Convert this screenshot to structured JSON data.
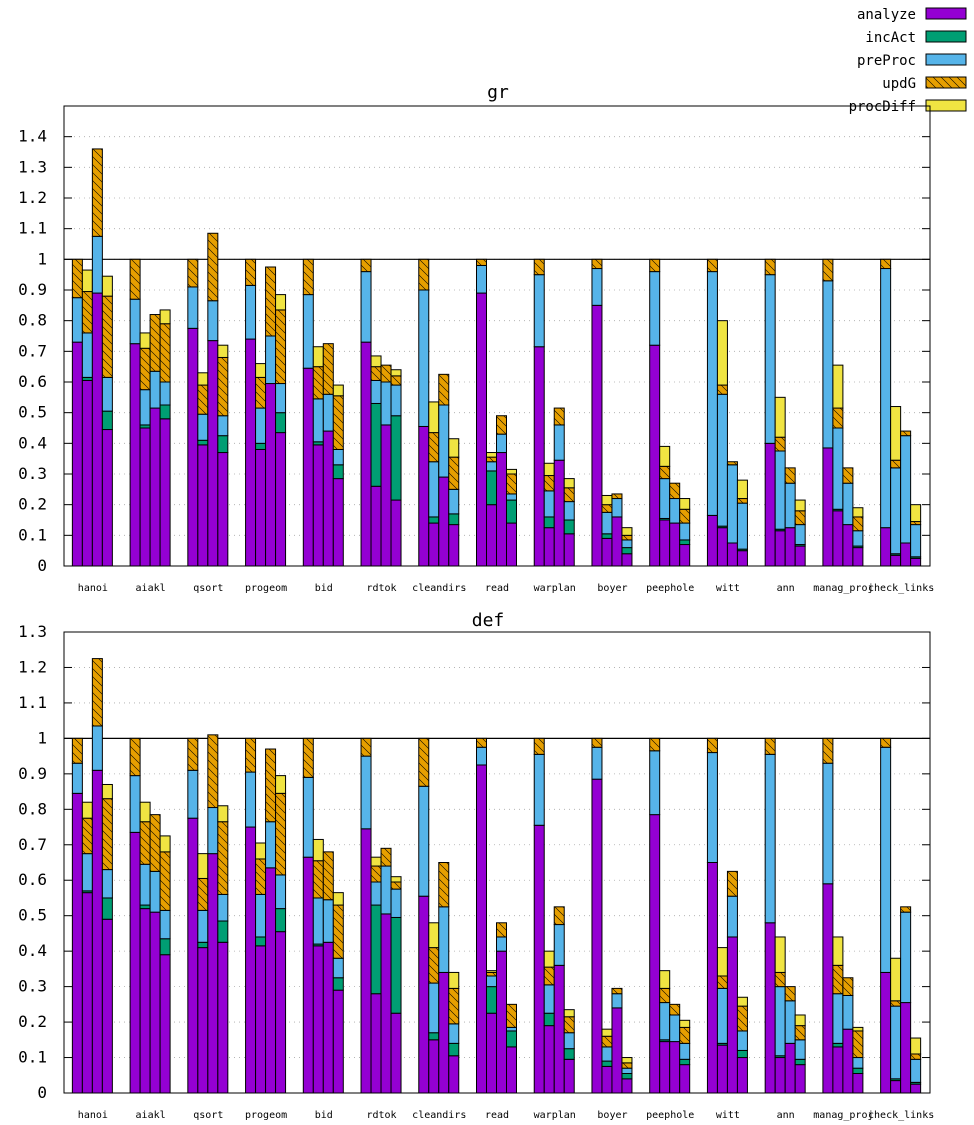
{
  "legend": {
    "placement": "top-right",
    "items": [
      {
        "name": "analyze",
        "color": "#9400d3",
        "pattern": "solid"
      },
      {
        "name": "incAct",
        "color": "#009e73",
        "pattern": "solid"
      },
      {
        "name": "preProc",
        "color": "#56b4e9",
        "pattern": "solid"
      },
      {
        "name": "updG",
        "color": "#e69f00",
        "pattern": "hatched"
      },
      {
        "name": "procDiff",
        "color": "#f0e442",
        "pattern": "solid"
      }
    ]
  },
  "chart_data": [
    {
      "type": "bar",
      "stacked": true,
      "title": "gr",
      "xlabel": "",
      "ylabel": "",
      "ylim": [
        0,
        1.5
      ],
      "yticks": [
        "0",
        "0.1",
        "0.2",
        "0.3",
        "0.4",
        "0.5",
        "0.6",
        "0.7",
        "0.8",
        "0.9",
        "1",
        "1.1",
        "1.2",
        "1.3",
        "1.4"
      ],
      "reference_line": 1,
      "grid": true,
      "categories": [
        "hanoi",
        "aiakl",
        "qsort",
        "progeom",
        "bid",
        "rdtok",
        "cleandirs",
        "read",
        "warplan",
        "boyer",
        "peephole",
        "witt",
        "ann",
        "manag_proj",
        "check_links"
      ],
      "bars_per_category": 4,
      "stack_order": [
        "analyze",
        "incAct",
        "preProc",
        "updG",
        "procDiff"
      ],
      "groups": [
        [
          [
            0.73,
            0,
            0.145,
            0.125,
            0
          ],
          [
            0.605,
            0.01,
            0.145,
            0.135,
            0.07
          ],
          [
            0.89,
            0,
            0.185,
            0.285,
            0
          ],
          [
            0.445,
            0.06,
            0.11,
            0.265,
            0.065
          ]
        ],
        [
          [
            0.725,
            0,
            0.145,
            0.13,
            0
          ],
          [
            0.45,
            0.01,
            0.115,
            0.135,
            0.05
          ],
          [
            0.515,
            0,
            0.12,
            0.185,
            0
          ],
          [
            0.48,
            0.045,
            0.075,
            0.19,
            0.045
          ]
        ],
        [
          [
            0.775,
            0,
            0.135,
            0.09,
            0
          ],
          [
            0.395,
            0.015,
            0.085,
            0.095,
            0.04
          ],
          [
            0.735,
            0,
            0.13,
            0.22,
            0
          ],
          [
            0.37,
            0.055,
            0.065,
            0.19,
            0.04
          ]
        ],
        [
          [
            0.74,
            0,
            0.175,
            0.085,
            0
          ],
          [
            0.38,
            0.02,
            0.115,
            0.1,
            0.045
          ],
          [
            0.595,
            0,
            0.155,
            0.225,
            0
          ],
          [
            0.435,
            0.065,
            0.095,
            0.24,
            0.05
          ]
        ],
        [
          [
            0.645,
            0,
            0.24,
            0.115,
            0
          ],
          [
            0.395,
            0.01,
            0.14,
            0.105,
            0.065
          ],
          [
            0.44,
            0,
            0.12,
            0.165,
            0
          ],
          [
            0.285,
            0.045,
            0.05,
            0.175,
            0.035
          ]
        ],
        [
          [
            0.73,
            0,
            0.23,
            0.04,
            0
          ],
          [
            0.26,
            0.27,
            0.075,
            0.045,
            0.035
          ],
          [
            0.46,
            0,
            0.14,
            0.055,
            0
          ],
          [
            0.215,
            0.275,
            0.1,
            0.03,
            0.02
          ]
        ],
        [
          [
            0.455,
            0,
            0.445,
            0.1,
            0
          ],
          [
            0.14,
            0.02,
            0.18,
            0.095,
            0.1
          ],
          [
            0.29,
            0,
            0.235,
            0.1,
            0
          ],
          [
            0.135,
            0.035,
            0.08,
            0.105,
            0.06
          ]
        ],
        [
          [
            0.89,
            0,
            0.09,
            0.02,
            0
          ],
          [
            0.2,
            0.11,
            0.03,
            0.015,
            0.015
          ],
          [
            0.37,
            0,
            0.06,
            0.06,
            0
          ],
          [
            0.14,
            0.075,
            0.02,
            0.065,
            0.015
          ]
        ],
        [
          [
            0.715,
            0,
            0.235,
            0.05,
            0
          ],
          [
            0.125,
            0.035,
            0.085,
            0.05,
            0.04
          ],
          [
            0.345,
            0,
            0.115,
            0.055,
            0
          ],
          [
            0.105,
            0.045,
            0.06,
            0.045,
            0.03
          ]
        ],
        [
          [
            0.85,
            0,
            0.12,
            0.03,
            0
          ],
          [
            0.09,
            0.015,
            0.07,
            0.025,
            0.03
          ],
          [
            0.16,
            0,
            0.06,
            0.015,
            0
          ],
          [
            0.04,
            0.02,
            0.025,
            0.015,
            0.025
          ]
        ],
        [
          [
            0.72,
            0,
            0.24,
            0.04,
            0
          ],
          [
            0.15,
            0.005,
            0.13,
            0.04,
            0.065
          ],
          [
            0.14,
            0,
            0.08,
            0.05,
            0
          ],
          [
            0.07,
            0.015,
            0.055,
            0.045,
            0.035
          ]
        ],
        [
          [
            0.165,
            0,
            0.795,
            0.04,
            0
          ],
          [
            0.125,
            0.005,
            0.43,
            0.03,
            0.21
          ],
          [
            0.075,
            0,
            0.255,
            0.01,
            0
          ],
          [
            0.05,
            0.005,
            0.15,
            0.015,
            0.06
          ]
        ],
        [
          [
            0.4,
            0,
            0.55,
            0.05,
            0
          ],
          [
            0.115,
            0.005,
            0.255,
            0.045,
            0.13
          ],
          [
            0.125,
            0,
            0.145,
            0.05,
            0
          ],
          [
            0.065,
            0.005,
            0.065,
            0.045,
            0.035
          ]
        ],
        [
          [
            0.385,
            0,
            0.545,
            0.07,
            0
          ],
          [
            0.18,
            0.005,
            0.265,
            0.065,
            0.14
          ],
          [
            0.135,
            0,
            0.135,
            0.05,
            0
          ],
          [
            0.06,
            0.005,
            0.05,
            0.045,
            0.03
          ]
        ],
        [
          [
            0.125,
            0,
            0.845,
            0.03,
            0
          ],
          [
            0.035,
            0.005,
            0.28,
            0.025,
            0.175
          ],
          [
            0.075,
            0,
            0.35,
            0.015,
            0
          ],
          [
            0.025,
            0.005,
            0.105,
            0.01,
            0.055
          ]
        ]
      ]
    },
    {
      "type": "bar",
      "stacked": true,
      "title": "def",
      "xlabel": "",
      "ylabel": "",
      "ylim": [
        0,
        1.3
      ],
      "yticks": [
        "0",
        "0.1",
        "0.2",
        "0.3",
        "0.4",
        "0.5",
        "0.6",
        "0.7",
        "0.8",
        "0.9",
        "1",
        "1.1",
        "1.2",
        "1.3"
      ],
      "reference_line": 1,
      "grid": true,
      "categories": [
        "hanoi",
        "aiakl",
        "qsort",
        "progeom",
        "bid",
        "rdtok",
        "cleandirs",
        "read",
        "warplan",
        "boyer",
        "peephole",
        "witt",
        "ann",
        "manag_proj",
        "check_links"
      ],
      "bars_per_category": 4,
      "stack_order": [
        "analyze",
        "incAct",
        "preProc",
        "updG",
        "procDiff"
      ],
      "groups": [
        [
          [
            0.845,
            0,
            0.085,
            0.07,
            0
          ],
          [
            0.565,
            0.005,
            0.105,
            0.1,
            0.045
          ],
          [
            0.91,
            0,
            0.125,
            0.19,
            0
          ],
          [
            0.49,
            0.06,
            0.08,
            0.2,
            0.04
          ]
        ],
        [
          [
            0.735,
            0,
            0.16,
            0.105,
            0
          ],
          [
            0.52,
            0.01,
            0.115,
            0.12,
            0.055
          ],
          [
            0.51,
            0,
            0.115,
            0.16,
            0
          ],
          [
            0.39,
            0.045,
            0.08,
            0.165,
            0.045
          ]
        ],
        [
          [
            0.775,
            0,
            0.135,
            0.09,
            0
          ],
          [
            0.41,
            0.015,
            0.09,
            0.09,
            0.07
          ],
          [
            0.675,
            0,
            0.13,
            0.205,
            0
          ],
          [
            0.425,
            0.06,
            0.075,
            0.205,
            0.045
          ]
        ],
        [
          [
            0.75,
            0,
            0.155,
            0.095,
            0
          ],
          [
            0.415,
            0.025,
            0.12,
            0.1,
            0.045
          ],
          [
            0.635,
            0,
            0.13,
            0.205,
            0
          ],
          [
            0.455,
            0.065,
            0.095,
            0.23,
            0.05
          ]
        ],
        [
          [
            0.665,
            0,
            0.225,
            0.11,
            0
          ],
          [
            0.415,
            0.005,
            0.13,
            0.105,
            0.06
          ],
          [
            0.425,
            0,
            0.12,
            0.135,
            0
          ],
          [
            0.29,
            0.035,
            0.055,
            0.15,
            0.035
          ]
        ],
        [
          [
            0.745,
            0,
            0.205,
            0.05,
            0
          ],
          [
            0.28,
            0.25,
            0.065,
            0.045,
            0.025
          ],
          [
            0.505,
            0,
            0.135,
            0.05,
            0
          ],
          [
            0.225,
            0.27,
            0.08,
            0.02,
            0.015
          ]
        ],
        [
          [
            0.555,
            0,
            0.31,
            0.135,
            0
          ],
          [
            0.15,
            0.02,
            0.14,
            0.1,
            0.07
          ],
          [
            0.34,
            0,
            0.185,
            0.125,
            0
          ],
          [
            0.105,
            0.035,
            0.055,
            0.1,
            0.045
          ]
        ],
        [
          [
            0.925,
            0,
            0.05,
            0.025,
            0
          ],
          [
            0.225,
            0.075,
            0.03,
            0.01,
            0.005
          ],
          [
            0.4,
            0,
            0.04,
            0.04,
            0
          ],
          [
            0.13,
            0.045,
            0.01,
            0.065,
            0
          ]
        ],
        [
          [
            0.755,
            0,
            0.2,
            0.045,
            0
          ],
          [
            0.19,
            0.035,
            0.08,
            0.05,
            0.045
          ],
          [
            0.36,
            0,
            0.115,
            0.05,
            0
          ],
          [
            0.095,
            0.03,
            0.045,
            0.045,
            0.02
          ]
        ],
        [
          [
            0.885,
            0,
            0.09,
            0.025,
            0
          ],
          [
            0.075,
            0.015,
            0.04,
            0.03,
            0.02
          ],
          [
            0.24,
            0,
            0.04,
            0.015,
            0
          ],
          [
            0.04,
            0.015,
            0.015,
            0.015,
            0.015
          ]
        ],
        [
          [
            0.785,
            0,
            0.18,
            0.035,
            0
          ],
          [
            0.145,
            0.005,
            0.105,
            0.04,
            0.05
          ],
          [
            0.145,
            0,
            0.075,
            0.03,
            0
          ],
          [
            0.08,
            0.015,
            0.045,
            0.045,
            0.02
          ]
        ],
        [
          [
            0.65,
            0,
            0.31,
            0.04,
            0
          ],
          [
            0.135,
            0.005,
            0.155,
            0.035,
            0.08
          ],
          [
            0.44,
            0,
            0.115,
            0.07,
            0
          ],
          [
            0.1,
            0.02,
            0.055,
            0.07,
            0.025
          ]
        ],
        [
          [
            0.48,
            0,
            0.475,
            0.045,
            0
          ],
          [
            0.1,
            0.005,
            0.195,
            0.04,
            0.1
          ],
          [
            0.14,
            0,
            0.12,
            0.04,
            0
          ],
          [
            0.08,
            0.015,
            0.055,
            0.04,
            0.03
          ]
        ],
        [
          [
            0.59,
            0,
            0.34,
            0.07,
            0
          ],
          [
            0.13,
            0.01,
            0.14,
            0.08,
            0.08
          ],
          [
            0.18,
            0,
            0.095,
            0.05,
            0
          ],
          [
            0.055,
            0.015,
            0.03,
            0.075,
            0.01
          ]
        ],
        [
          [
            0.34,
            0,
            0.635,
            0.025,
            0
          ],
          [
            0.035,
            0.005,
            0.205,
            0.015,
            0.12
          ],
          [
            0.255,
            0,
            0.255,
            0.015,
            0
          ],
          [
            0.025,
            0.005,
            0.065,
            0.015,
            0.045
          ]
        ]
      ]
    }
  ]
}
